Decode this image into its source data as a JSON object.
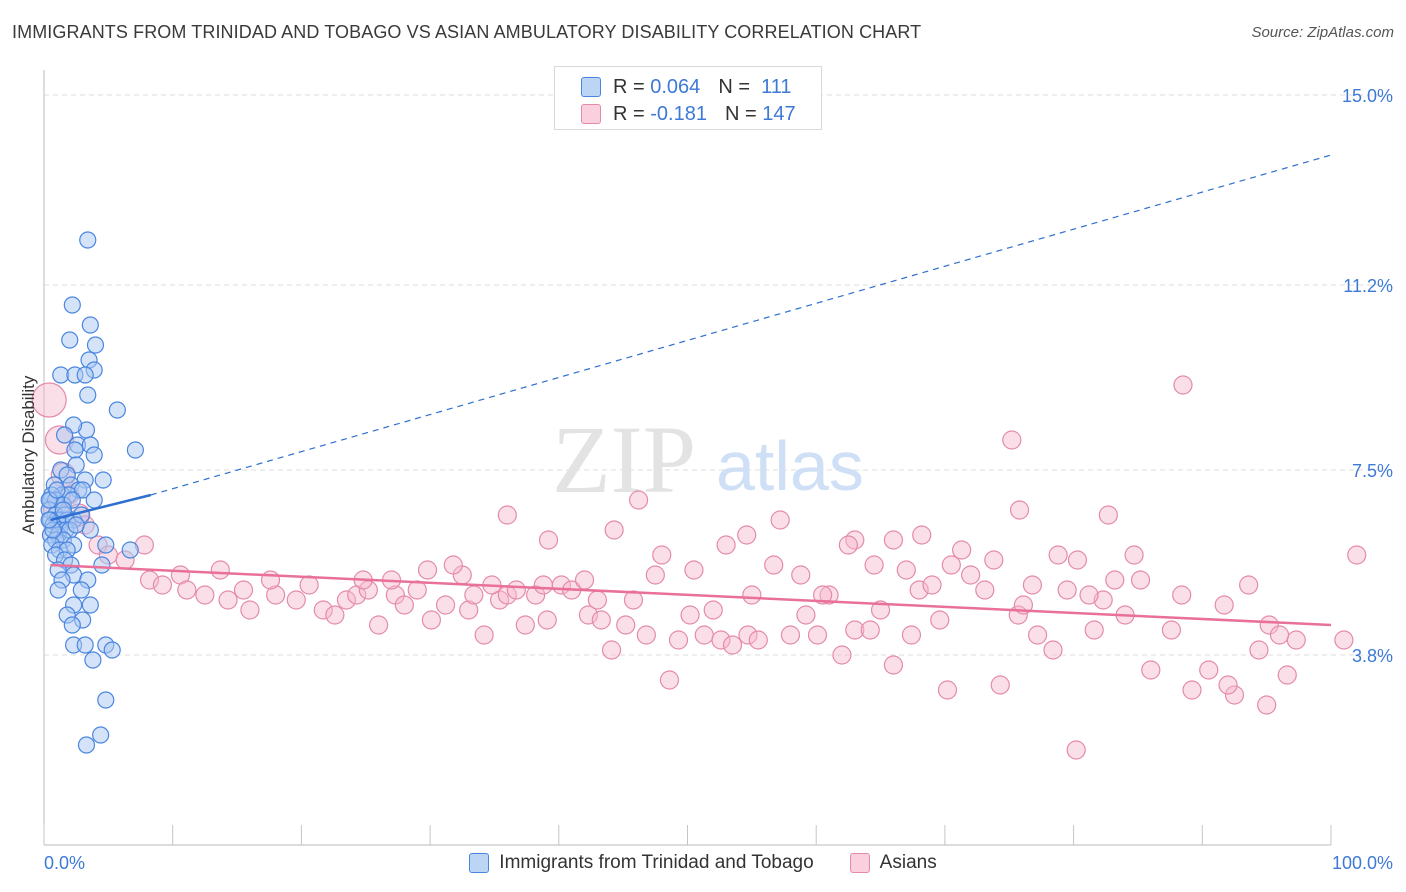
{
  "title": "IMMIGRANTS FROM TRINIDAD AND TOBAGO VS ASIAN AMBULATORY DISABILITY CORRELATION CHART",
  "source": "Source: ZipAtlas.com",
  "watermark": {
    "zip": "ZIP",
    "atlas": "atlas"
  },
  "colors": {
    "blue_fill": "#a9c8f2",
    "blue_stroke": "#4a86e0",
    "blue_line": "#2f6fd0",
    "pink_fill": "#f7b9cd",
    "pink_stroke": "#e48aaa",
    "pink_line": "#e8709a",
    "tick_label": "#3d7ad6",
    "grid": "#dedede"
  },
  "stats": [
    {
      "r_label": "R =",
      "r_value": "0.064",
      "n_label": "N =",
      "n_value": "111"
    },
    {
      "r_label": "R =",
      "r_value": "-0.181",
      "n_label": "N =",
      "n_value": "147"
    }
  ],
  "chart_data": {
    "type": "scatter",
    "title": "IMMIGRANTS FROM TRINIDAD AND TOBAGO VS ASIAN AMBULATORY DISABILITY CORRELATION CHART",
    "xlabel": "",
    "ylabel": "Ambulatory Disability",
    "xlim": [
      0,
      100
    ],
    "ylim": [
      0,
      15.5
    ],
    "x_tick_labels": [
      "0.0%",
      "100.0%"
    ],
    "y_ticks": [
      3.8,
      7.5,
      11.2,
      15.0
    ],
    "y_tick_labels": [
      "3.8%",
      "7.5%",
      "11.2%",
      "15.0%"
    ],
    "grid": true,
    "legend_position": "bottom",
    "series": [
      {
        "name": "Immigrants from Trinidad and Tobago",
        "color": "#4a86e0",
        "trend": {
          "x": [
            0.5,
            8.3
          ],
          "y": [
            6.5,
            7.0
          ],
          "dashed_extension_to": [
            100,
            13.8
          ]
        },
        "points": [
          [
            3.4,
            12.1
          ],
          [
            2.2,
            10.8
          ],
          [
            3.6,
            10.4
          ],
          [
            2.0,
            10.1
          ],
          [
            4.0,
            10.0
          ],
          [
            3.5,
            9.7
          ],
          [
            3.9,
            9.5
          ],
          [
            1.3,
            9.4
          ],
          [
            2.4,
            9.4
          ],
          [
            3.2,
            9.4
          ],
          [
            3.4,
            9.0
          ],
          [
            5.7,
            8.7
          ],
          [
            3.3,
            8.3
          ],
          [
            2.3,
            8.4
          ],
          [
            1.6,
            8.2
          ],
          [
            2.6,
            8.0
          ],
          [
            3.6,
            8.0
          ],
          [
            3.9,
            7.8
          ],
          [
            7.1,
            7.9
          ],
          [
            2.4,
            7.9
          ],
          [
            2.5,
            7.6
          ],
          [
            1.3,
            7.5
          ],
          [
            1.8,
            7.4
          ],
          [
            3.2,
            7.3
          ],
          [
            4.6,
            7.3
          ],
          [
            0.8,
            7.2
          ],
          [
            2.1,
            7.2
          ],
          [
            2.7,
            7.1
          ],
          [
            1.4,
            7.0
          ],
          [
            0.6,
            7.0
          ],
          [
            1.9,
            7.0
          ],
          [
            3.0,
            7.1
          ],
          [
            0.5,
            6.9
          ],
          [
            0.9,
            6.9
          ],
          [
            1.5,
            6.8
          ],
          [
            2.2,
            6.9
          ],
          [
            3.9,
            6.9
          ],
          [
            0.4,
            6.7
          ],
          [
            0.9,
            6.6
          ],
          [
            1.6,
            6.6
          ],
          [
            0.5,
            6.5
          ],
          [
            1.0,
            6.5
          ],
          [
            1.3,
            6.5
          ],
          [
            1.8,
            6.5
          ],
          [
            2.3,
            6.5
          ],
          [
            2.9,
            6.6
          ],
          [
            0.7,
            6.4
          ],
          [
            1.2,
            6.3
          ],
          [
            1.7,
            6.3
          ],
          [
            0.5,
            6.2
          ],
          [
            1.1,
            6.2
          ],
          [
            2.0,
            6.3
          ],
          [
            3.6,
            6.3
          ],
          [
            0.9,
            6.1
          ],
          [
            1.5,
            6.1
          ],
          [
            2.3,
            6.0
          ],
          [
            0.6,
            6.0
          ],
          [
            1.2,
            5.9
          ],
          [
            1.8,
            5.9
          ],
          [
            4.8,
            6.0
          ],
          [
            6.7,
            5.9
          ],
          [
            0.9,
            5.8
          ],
          [
            1.6,
            5.7
          ],
          [
            2.1,
            5.6
          ],
          [
            4.5,
            5.6
          ],
          [
            1.1,
            5.5
          ],
          [
            2.3,
            5.4
          ],
          [
            1.4,
            5.3
          ],
          [
            3.4,
            5.3
          ],
          [
            2.9,
            5.1
          ],
          [
            1.1,
            5.1
          ],
          [
            2.3,
            4.8
          ],
          [
            3.6,
            4.8
          ],
          [
            1.8,
            4.6
          ],
          [
            3.0,
            4.5
          ],
          [
            2.2,
            4.4
          ],
          [
            2.3,
            4.0
          ],
          [
            3.2,
            4.0
          ],
          [
            4.8,
            4.0
          ],
          [
            5.3,
            3.9
          ],
          [
            3.8,
            3.7
          ],
          [
            4.8,
            2.9
          ],
          [
            4.4,
            2.2
          ],
          [
            3.3,
            2.0
          ],
          [
            0.4,
            6.9
          ],
          [
            0.7,
            6.3
          ],
          [
            1.5,
            6.7
          ],
          [
            2.5,
            6.4
          ],
          [
            0.4,
            6.5
          ],
          [
            1.0,
            7.1
          ]
        ]
      },
      {
        "name": "Asians",
        "color": "#e48aaa",
        "trend": {
          "x": [
            0.5,
            100
          ],
          "y": [
            5.6,
            4.4
          ]
        },
        "points": [
          [
            0.4,
            8.9
          ],
          [
            1.2,
            8.1
          ],
          [
            1.5,
            7.4
          ],
          [
            2.0,
            7.0
          ],
          [
            2.7,
            6.6
          ],
          [
            3.2,
            6.4
          ],
          [
            0.8,
            6.7
          ],
          [
            4.2,
            6.0
          ],
          [
            5.0,
            5.8
          ],
          [
            6.3,
            5.7
          ],
          [
            7.8,
            6.0
          ],
          [
            8.2,
            5.3
          ],
          [
            9.2,
            5.2
          ],
          [
            10.6,
            5.4
          ],
          [
            11.1,
            5.1
          ],
          [
            12.5,
            5.0
          ],
          [
            13.7,
            5.5
          ],
          [
            14.3,
            4.9
          ],
          [
            15.5,
            5.1
          ],
          [
            16.0,
            4.7
          ],
          [
            18.0,
            5.0
          ],
          [
            17.6,
            5.3
          ],
          [
            19.6,
            4.9
          ],
          [
            20.6,
            5.2
          ],
          [
            21.7,
            4.7
          ],
          [
            22.6,
            4.6
          ],
          [
            23.5,
            4.9
          ],
          [
            24.3,
            5.0
          ],
          [
            25.2,
            5.1
          ],
          [
            26.0,
            4.4
          ],
          [
            27.3,
            5.0
          ],
          [
            28.0,
            4.8
          ],
          [
            29.0,
            5.1
          ],
          [
            30.1,
            4.5
          ],
          [
            31.2,
            4.8
          ],
          [
            32.5,
            5.4
          ],
          [
            33.0,
            4.7
          ],
          [
            34.2,
            4.2
          ],
          [
            35.4,
            4.9
          ],
          [
            36.0,
            5.0
          ],
          [
            37.4,
            4.4
          ],
          [
            38.2,
            5.0
          ],
          [
            39.1,
            4.5
          ],
          [
            40.2,
            5.2
          ],
          [
            41.0,
            5.1
          ],
          [
            42.3,
            4.6
          ],
          [
            43.0,
            4.9
          ],
          [
            44.1,
            3.9
          ],
          [
            45.2,
            4.4
          ],
          [
            45.8,
            4.9
          ],
          [
            46.8,
            4.2
          ],
          [
            47.5,
            5.4
          ],
          [
            48.6,
            3.3
          ],
          [
            49.3,
            4.1
          ],
          [
            50.2,
            4.6
          ],
          [
            51.3,
            4.2
          ],
          [
            52.0,
            4.7
          ],
          [
            52.6,
            4.1
          ],
          [
            53.5,
            4.0
          ],
          [
            54.7,
            4.2
          ],
          [
            55.5,
            4.1
          ],
          [
            56.7,
            5.6
          ],
          [
            58.0,
            4.2
          ],
          [
            59.2,
            4.6
          ],
          [
            60.1,
            4.2
          ],
          [
            61.0,
            5.0
          ],
          [
            62.0,
            3.8
          ],
          [
            63.0,
            4.3
          ],
          [
            64.2,
            4.3
          ],
          [
            65.0,
            4.7
          ],
          [
            66.0,
            3.6
          ],
          [
            67.4,
            4.2
          ],
          [
            68.0,
            5.1
          ],
          [
            69.6,
            4.5
          ],
          [
            70.2,
            3.1
          ],
          [
            72.0,
            5.4
          ],
          [
            73.1,
            5.1
          ],
          [
            74.3,
            3.2
          ],
          [
            75.7,
            4.6
          ],
          [
            76.1,
            4.8
          ],
          [
            77.2,
            4.2
          ],
          [
            78.4,
            3.9
          ],
          [
            79.5,
            5.1
          ],
          [
            80.3,
            5.7
          ],
          [
            81.6,
            4.3
          ],
          [
            82.3,
            4.9
          ],
          [
            83.2,
            5.3
          ],
          [
            84.0,
            4.6
          ],
          [
            85.2,
            5.3
          ],
          [
            86.0,
            3.5
          ],
          [
            87.6,
            4.3
          ],
          [
            88.4,
            5.0
          ],
          [
            89.2,
            3.1
          ],
          [
            90.5,
            3.5
          ],
          [
            91.7,
            4.8
          ],
          [
            92.5,
            3.0
          ],
          [
            93.6,
            5.2
          ],
          [
            94.4,
            3.9
          ],
          [
            95.2,
            4.4
          ],
          [
            96.6,
            3.4
          ],
          [
            97.3,
            4.1
          ],
          [
            88.5,
            9.2
          ],
          [
            75.2,
            8.1
          ],
          [
            82.7,
            6.6
          ],
          [
            75.8,
            6.7
          ],
          [
            57.2,
            6.5
          ],
          [
            63.0,
            6.1
          ],
          [
            66.0,
            6.1
          ],
          [
            71.3,
            5.9
          ],
          [
            36.0,
            6.6
          ],
          [
            39.2,
            6.1
          ],
          [
            44.3,
            6.3
          ],
          [
            48.0,
            5.8
          ],
          [
            53.0,
            6.0
          ],
          [
            54.6,
            6.2
          ],
          [
            62.5,
            6.0
          ],
          [
            68.2,
            6.2
          ],
          [
            70.5,
            5.6
          ],
          [
            102.0,
            5.8
          ],
          [
            96.0,
            4.2
          ],
          [
            101.0,
            4.1
          ],
          [
            92.0,
            3.2
          ],
          [
            95.0,
            2.8
          ],
          [
            80.2,
            1.9
          ],
          [
            46.2,
            6.9
          ],
          [
            24.8,
            5.3
          ],
          [
            27.0,
            5.3
          ],
          [
            29.8,
            5.5
          ],
          [
            31.8,
            5.6
          ],
          [
            33.4,
            5.0
          ],
          [
            34.8,
            5.2
          ],
          [
            36.7,
            5.1
          ],
          [
            38.8,
            5.2
          ],
          [
            42.0,
            5.3
          ],
          [
            43.3,
            4.5
          ],
          [
            50.5,
            5.5
          ],
          [
            55.0,
            5.0
          ],
          [
            58.8,
            5.4
          ],
          [
            60.5,
            5.0
          ],
          [
            64.5,
            5.6
          ],
          [
            67.0,
            5.5
          ],
          [
            69.0,
            5.2
          ],
          [
            73.8,
            5.7
          ],
          [
            76.8,
            5.2
          ],
          [
            78.8,
            5.8
          ],
          [
            81.2,
            5.0
          ],
          [
            84.7,
            5.8
          ]
        ]
      }
    ]
  }
}
